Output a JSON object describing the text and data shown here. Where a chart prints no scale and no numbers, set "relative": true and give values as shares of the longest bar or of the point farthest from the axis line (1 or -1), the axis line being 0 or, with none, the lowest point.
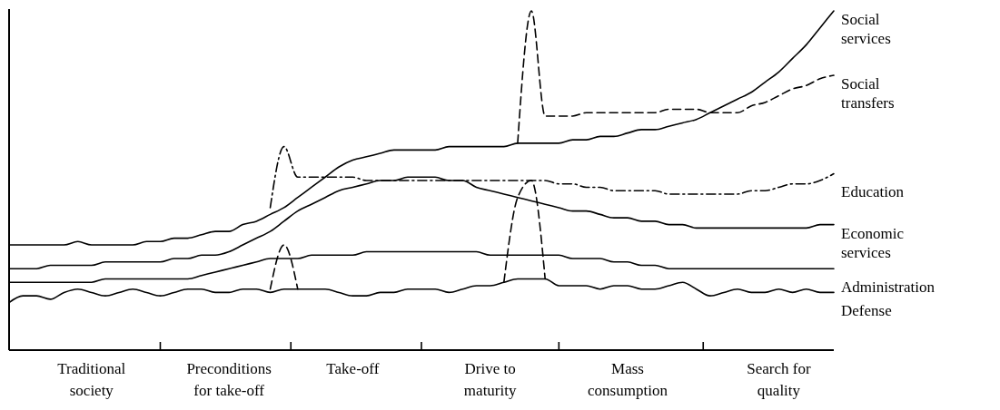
{
  "chart_data": {
    "type": "line",
    "relative": true,
    "categories": [
      null,
      null,
      null,
      null,
      null,
      null,
      "Traditional society",
      null,
      null,
      null,
      null,
      null,
      null,
      null,
      null,
      null,
      "Preconditions for take-off",
      null,
      null,
      null,
      null,
      null,
      null,
      null,
      null,
      "Take-off",
      null,
      null,
      null,
      null,
      null,
      null,
      null,
      null,
      null,
      "Drive to maturity",
      null,
      null,
      null,
      null,
      null,
      null,
      null,
      null,
      null,
      "Mass consumption",
      null,
      null,
      null,
      null,
      null,
      null,
      null,
      null,
      null,
      null,
      "Search for quality",
      null,
      null,
      null,
      null
    ],
    "series": [
      {
        "name": "Social services",
        "color": "#000000",
        "line_style": "solid",
        "values": [
          0.31,
          0.31,
          0.31,
          0.31,
          0.31,
          0.32,
          0.31,
          0.31,
          0.31,
          0.31,
          0.32,
          0.32,
          0.33,
          0.33,
          0.34,
          0.35,
          0.35,
          0.37,
          0.38,
          0.4,
          0.42,
          0.45,
          0.48,
          0.51,
          0.54,
          0.56,
          0.57,
          0.58,
          0.59,
          0.59,
          0.59,
          0.59,
          0.6,
          0.6,
          0.6,
          0.6,
          0.6,
          0.61,
          0.61,
          0.61,
          0.61,
          0.62,
          0.62,
          0.63,
          0.63,
          0.64,
          0.65,
          0.65,
          0.66,
          0.67,
          0.68,
          0.7,
          0.72,
          0.74,
          0.76,
          0.79,
          0.82,
          0.86,
          0.9,
          0.95,
          1.0
        ]
      },
      {
        "name": "Social transfers",
        "color": "#000000",
        "line_style": "dashed",
        "values": [
          null,
          null,
          null,
          null,
          null,
          null,
          null,
          null,
          null,
          null,
          null,
          null,
          null,
          null,
          null,
          null,
          null,
          null,
          null,
          null,
          null,
          null,
          null,
          null,
          null,
          null,
          null,
          null,
          null,
          null,
          null,
          null,
          null,
          null,
          null,
          null,
          null,
          0.61,
          1.0,
          0.69,
          0.69,
          0.69,
          0.7,
          0.7,
          0.7,
          0.7,
          0.7,
          0.7,
          0.71,
          0.71,
          0.71,
          0.7,
          0.7,
          0.7,
          0.72,
          0.73,
          0.75,
          0.77,
          0.78,
          0.8,
          0.81
        ]
      },
      {
        "name": "Education",
        "color": "#000000",
        "line_style": "dashdot",
        "values": [
          null,
          null,
          null,
          null,
          null,
          null,
          null,
          null,
          null,
          null,
          null,
          null,
          null,
          null,
          null,
          null,
          null,
          null,
          null,
          0.42,
          0.6,
          0.51,
          0.51,
          0.51,
          0.51,
          0.51,
          0.5,
          0.5,
          0.5,
          0.5,
          0.5,
          0.5,
          0.5,
          0.5,
          0.5,
          0.5,
          0.5,
          0.5,
          0.5,
          0.5,
          0.49,
          0.49,
          0.48,
          0.48,
          0.47,
          0.47,
          0.47,
          0.47,
          0.46,
          0.46,
          0.46,
          0.46,
          0.46,
          0.46,
          0.47,
          0.47,
          0.48,
          0.49,
          0.49,
          0.5,
          0.52
        ]
      },
      {
        "name": "Economic services",
        "color": "#000000",
        "line_style": "solid",
        "values": [
          0.24,
          0.24,
          0.24,
          0.25,
          0.25,
          0.25,
          0.25,
          0.26,
          0.26,
          0.26,
          0.26,
          0.26,
          0.27,
          0.27,
          0.28,
          0.28,
          0.29,
          0.31,
          0.33,
          0.35,
          0.38,
          0.41,
          0.43,
          0.45,
          0.47,
          0.48,
          0.49,
          0.5,
          0.5,
          0.51,
          0.51,
          0.51,
          0.5,
          0.5,
          0.48,
          0.47,
          0.46,
          0.45,
          0.44,
          0.43,
          0.42,
          0.41,
          0.41,
          0.4,
          0.39,
          0.39,
          0.38,
          0.38,
          0.37,
          0.37,
          0.36,
          0.36,
          0.36,
          0.36,
          0.36,
          0.36,
          0.36,
          0.36,
          0.36,
          0.37,
          0.37
        ]
      },
      {
        "name": "Administration",
        "color": "#000000",
        "line_style": "solid",
        "values": [
          0.2,
          0.2,
          0.2,
          0.2,
          0.2,
          0.2,
          0.2,
          0.21,
          0.21,
          0.21,
          0.21,
          0.21,
          0.21,
          0.21,
          0.22,
          0.23,
          0.24,
          0.25,
          0.26,
          0.27,
          0.27,
          0.27,
          0.28,
          0.28,
          0.28,
          0.28,
          0.29,
          0.29,
          0.29,
          0.29,
          0.29,
          0.29,
          0.29,
          0.29,
          0.29,
          0.28,
          0.28,
          0.28,
          0.28,
          0.28,
          0.28,
          0.27,
          0.27,
          0.27,
          0.26,
          0.26,
          0.25,
          0.25,
          0.24,
          0.24,
          0.24,
          0.24,
          0.24,
          0.24,
          0.24,
          0.24,
          0.24,
          0.24,
          0.24,
          0.24,
          0.24
        ]
      },
      {
        "name": "Defense",
        "color": "#000000",
        "line_style": "solid",
        "values": [
          0.14,
          0.16,
          0.16,
          0.15,
          0.17,
          0.18,
          0.17,
          0.16,
          0.17,
          0.18,
          0.17,
          0.16,
          0.17,
          0.18,
          0.18,
          0.17,
          0.17,
          0.18,
          0.18,
          0.17,
          0.18,
          0.18,
          0.18,
          0.18,
          0.17,
          0.16,
          0.16,
          0.17,
          0.17,
          0.18,
          0.18,
          0.18,
          0.17,
          0.18,
          0.19,
          0.19,
          0.2,
          0.21,
          0.21,
          0.21,
          0.19,
          0.19,
          0.19,
          0.18,
          0.19,
          0.19,
          0.18,
          0.18,
          0.19,
          0.2,
          0.18,
          0.16,
          0.17,
          0.18,
          0.17,
          0.17,
          0.18,
          0.17,
          0.18,
          0.17,
          0.17
        ]
      },
      {
        "color": "#000000",
        "line_style": "dashed",
        "values": [
          null,
          null,
          null,
          null,
          null,
          null,
          null,
          null,
          null,
          null,
          null,
          null,
          null,
          null,
          null,
          null,
          null,
          null,
          null,
          0.18,
          0.31,
          0.18,
          null,
          null,
          null,
          null,
          null,
          null,
          null,
          null,
          null,
          null,
          null,
          null,
          null,
          null,
          null,
          null,
          null,
          null,
          null,
          null,
          null,
          null,
          null,
          null,
          null,
          null,
          null,
          null,
          null,
          null,
          null,
          null,
          null,
          null,
          null,
          null,
          null,
          null,
          null
        ]
      },
      {
        "color": "#000000",
        "line_style": "dashed",
        "values": [
          null,
          null,
          null,
          null,
          null,
          null,
          null,
          null,
          null,
          null,
          null,
          null,
          null,
          null,
          null,
          null,
          null,
          null,
          null,
          null,
          null,
          null,
          null,
          null,
          null,
          null,
          null,
          null,
          null,
          null,
          null,
          null,
          null,
          null,
          null,
          null,
          0.2,
          0.45,
          0.5,
          0.21,
          null,
          null,
          null,
          null,
          null,
          null,
          null,
          null,
          null,
          null,
          null,
          null,
          null,
          null,
          null,
          null,
          null,
          null,
          null,
          null,
          null
        ]
      }
    ]
  }
}
